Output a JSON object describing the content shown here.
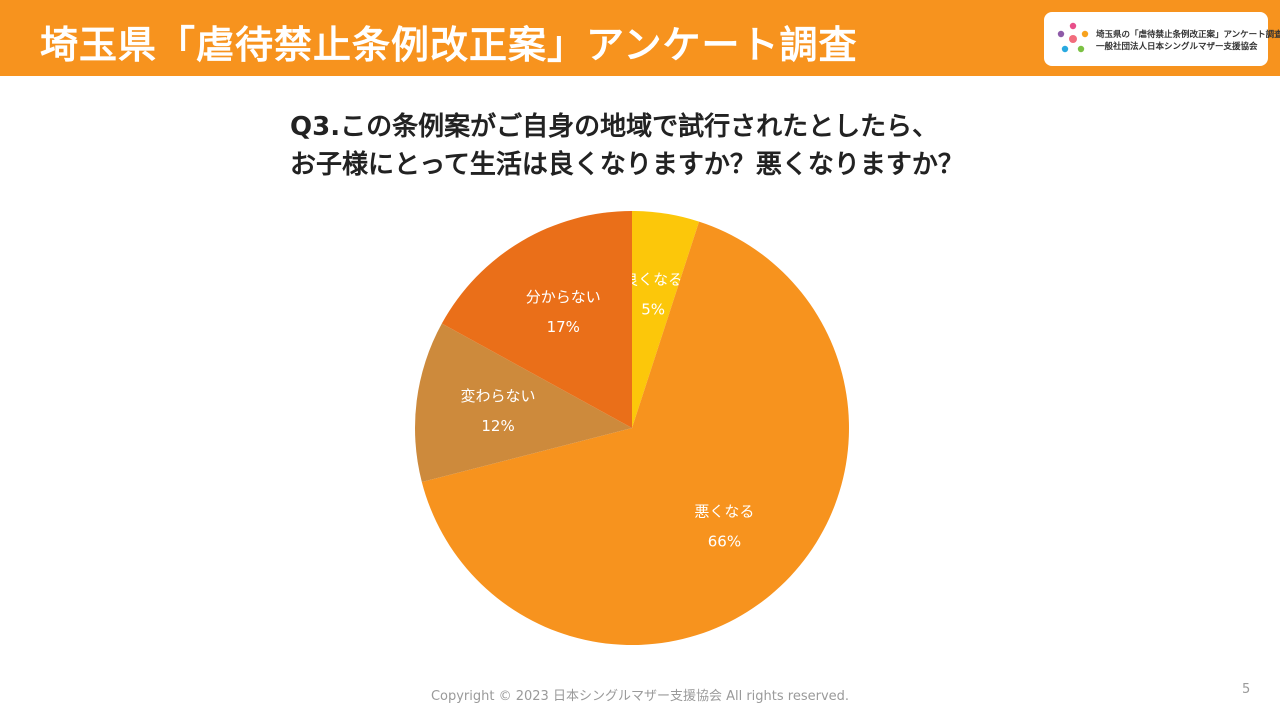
{
  "header": {
    "title": "埼玉県「虐待禁止条例改正案」アンケート調査",
    "background_color": "#f7931e"
  },
  "logo": {
    "line1": "埼玉県の「虐待禁止条例改正案」アンケート調査",
    "line2": "一般社団法人日本シングルマザー支援協会"
  },
  "question": {
    "line1": "Q3.この条例案がご自身の地域で試行されたとしたら、",
    "line2": "お子様にとって生活は良くなりますか？悪くなりますか？"
  },
  "chart_data": {
    "type": "pie",
    "title": "",
    "slices": [
      {
        "label": "良くなる",
        "value": 5,
        "value_label": "5%",
        "color": "#fcc70a"
      },
      {
        "label": "悪くなる",
        "value": 66,
        "value_label": "66%",
        "color": "#f7931e"
      },
      {
        "label": "変わらない",
        "value": 12,
        "value_label": "12%",
        "color": "#cd8a3c"
      },
      {
        "label": "分からない",
        "value": 17,
        "value_label": "17%",
        "color": "#ea6f19"
      }
    ],
    "start": "12 o'clock",
    "direction": "clockwise",
    "legend": "none"
  },
  "footer": {
    "copyright": "Copyright © 2023 日本シングルマザー支援協会 All rights reserved.",
    "page_number": "5"
  }
}
